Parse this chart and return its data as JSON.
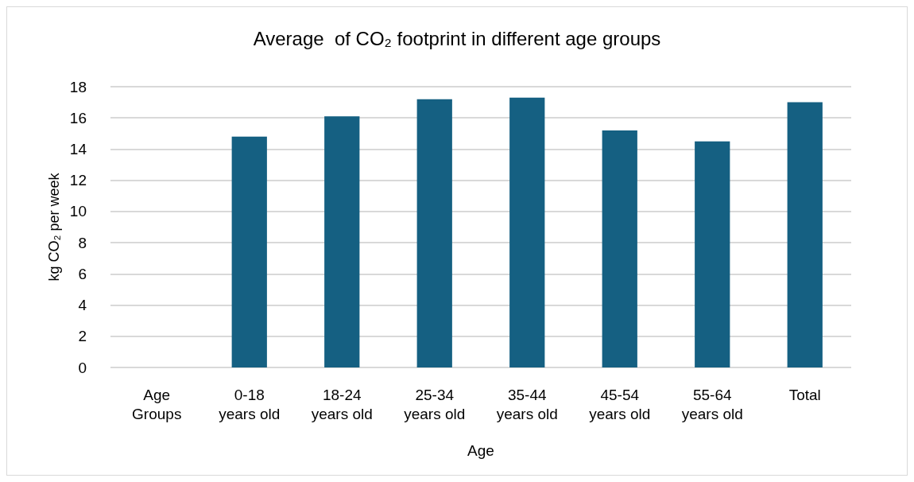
{
  "chart_data": {
    "type": "bar",
    "title": "Average  of CO₂ footprint in different age groups",
    "xlabel": "Age",
    "ylabel": "kg CO₂ per week",
    "categories": [
      "Age\nGroups",
      "0-18\nyears old",
      "18-24\nyears old",
      "25-34\nyears old",
      "35-44\nyears old",
      "45-54\nyears old",
      "55-64\nyears old",
      "Total"
    ],
    "values": [
      0,
      14.8,
      16.1,
      17.2,
      17.3,
      15.2,
      14.5,
      17.0
    ],
    "color": "#156082",
    "ylim": [
      0,
      18
    ],
    "yticks": [
      0,
      2,
      4,
      6,
      8,
      10,
      12,
      14,
      16,
      18
    ],
    "grid": "y"
  }
}
